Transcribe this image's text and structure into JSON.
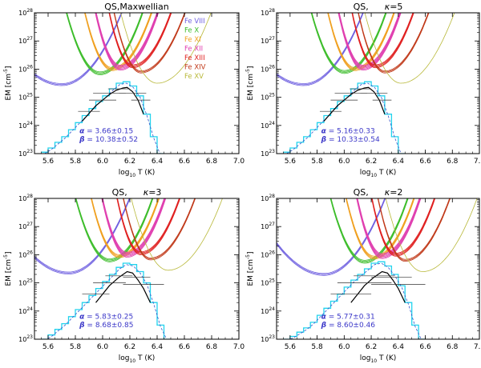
{
  "figure": {
    "xlabel_main": "log",
    "xlabel_sub": "10",
    "xlabel_tail": " T (K)",
    "ylabel_main": "EM [cm",
    "ylabel_sup": "-5",
    "ylabel_tail": "]"
  },
  "legend": [
    {
      "name": "Fe VIII",
      "color": "#6e5fe0"
    },
    {
      "name": "Fe X",
      "color": "#3dbd2b"
    },
    {
      "name": "Fe XI",
      "color": "#f0a020"
    },
    {
      "name": "Fe XII",
      "color": "#e040b0"
    },
    {
      "name": "Fe XIII",
      "color": "#e02020"
    },
    {
      "name": "Fe XIV",
      "color": "#c03818"
    },
    {
      "name": "Fe XV",
      "color": "#b8b838"
    }
  ],
  "chart_data": [
    {
      "type": "line",
      "title": "QS,    Maxwellian",
      "title_parts": {
        "prefix": "QS,",
        "kappa_symbol": "",
        "kappa_value": "Maxwellian"
      },
      "xlim": [
        5.5,
        7.0
      ],
      "ylim_log10": [
        23,
        28
      ],
      "x_ticks": [
        "5.6",
        "5.8",
        "6.0",
        "6.2",
        "6.4",
        "6.6",
        "6.8",
        "7.0"
      ],
      "y_ticks": [
        "10²³",
        "10²⁴",
        "10²⁵",
        "10²⁶",
        "10²⁷",
        "10²⁸"
      ],
      "show_legend": true,
      "loci": [
        {
          "ion": "Fe VIII",
          "Tmin": 5.7,
          "EMmin": 25.45,
          "left": 0.9,
          "right": 3.3,
          "n": 3
        },
        {
          "ion": "Fe X",
          "Tmin": 5.98,
          "EMmin": 25.85,
          "left": 3.6,
          "right": 5.5,
          "n": 4
        },
        {
          "ion": "Fe XI",
          "Tmin": 6.07,
          "EMmin": 26.0,
          "left": 5.0,
          "right": 6.0,
          "n": 4
        },
        {
          "ion": "Fe XII",
          "Tmin": 6.13,
          "EMmin": 26.05,
          "left": 6.0,
          "right": 6.5,
          "n": 6
        },
        {
          "ion": "Fe XIII",
          "Tmin": 6.22,
          "EMmin": 26.1,
          "left": 6.5,
          "right": 6.0,
          "n": 4
        },
        {
          "ion": "Fe XIV",
          "Tmin": 6.28,
          "EMmin": 25.9,
          "left": 5.5,
          "right": 5.0,
          "n": 3
        },
        {
          "ion": "Fe XV",
          "Tmin": 6.4,
          "EMmin": 25.5,
          "left": 3.5,
          "right": 4.0,
          "n": 1
        }
      ],
      "em_fit": {
        "T": [
          5.85,
          5.95,
          6.05,
          6.1,
          6.15,
          6.18,
          6.22,
          6.26,
          6.3
        ],
        "logEM": [
          24.15,
          24.7,
          25.1,
          25.25,
          25.33,
          25.35,
          25.2,
          24.9,
          24.4
        ]
      },
      "em_points": [
        {
          "T": 5.9,
          "logEM": 24.5,
          "dT": 0.08
        },
        {
          "T": 6.0,
          "logEM": 24.9,
          "dT": 0.1
        },
        {
          "T": 6.05,
          "logEM": 25.15,
          "dT": 0.12
        },
        {
          "T": 6.12,
          "logEM": 25.3,
          "dT": 0.08
        },
        {
          "T": 6.22,
          "logEM": 25.15,
          "dT": 0.1
        },
        {
          "T": 6.28,
          "logEM": 24.9,
          "dT": 0.07
        }
      ],
      "histogram": {
        "T_start": 5.55,
        "step": 0.05,
        "logEM": [
          23.05,
          23.2,
          23.4,
          23.6,
          23.85,
          24.1,
          24.35,
          24.6,
          24.85,
          25.05,
          25.3,
          25.5,
          25.55,
          25.4,
          25.05,
          24.4,
          23.6,
          23.0
        ]
      },
      "alpha_label": "α",
      "alpha": "3.66±0.15",
      "beta_label": "β",
      "beta": "10.38±0.52"
    },
    {
      "type": "line",
      "title": "QS,    κ=5",
      "title_parts": {
        "prefix": "QS,",
        "kappa_symbol": "κ",
        "kappa_value": "=5"
      },
      "xlim": [
        5.5,
        7.0
      ],
      "ylim_log10": [
        23,
        28
      ],
      "x_ticks": [
        "5.6",
        "5.8",
        "6.0",
        "6.2",
        "6.4",
        "6.6",
        "6.8",
        "7.0"
      ],
      "y_ticks": [
        "10²³",
        "10²⁴",
        "10²⁵",
        "10²⁶",
        "10²⁷",
        "10²⁸"
      ],
      "show_legend": false,
      "loci": [
        {
          "ion": "Fe VIII",
          "Tmin": 5.7,
          "EMmin": 25.45,
          "left": 0.9,
          "right": 3.3,
          "n": 3
        },
        {
          "ion": "Fe X",
          "Tmin": 6.0,
          "EMmin": 25.9,
          "left": 3.6,
          "right": 5.5,
          "n": 4
        },
        {
          "ion": "Fe XI",
          "Tmin": 6.08,
          "EMmin": 26.0,
          "left": 5.0,
          "right": 6.0,
          "n": 4
        },
        {
          "ion": "Fe XII",
          "Tmin": 6.14,
          "EMmin": 26.05,
          "left": 6.0,
          "right": 6.5,
          "n": 6
        },
        {
          "ion": "Fe XIII",
          "Tmin": 6.23,
          "EMmin": 26.1,
          "left": 6.5,
          "right": 6.0,
          "n": 4
        },
        {
          "ion": "Fe XIV",
          "Tmin": 6.3,
          "EMmin": 25.9,
          "left": 5.5,
          "right": 5.0,
          "n": 3
        },
        {
          "ion": "Fe XV",
          "Tmin": 6.42,
          "EMmin": 25.5,
          "left": 3.5,
          "right": 4.0,
          "n": 1
        }
      ],
      "em_fit": {
        "T": [
          5.85,
          5.95,
          6.05,
          6.1,
          6.15,
          6.18,
          6.22,
          6.26,
          6.3
        ],
        "logEM": [
          24.15,
          24.7,
          25.1,
          25.25,
          25.33,
          25.35,
          25.2,
          24.9,
          24.4
        ]
      },
      "em_points": [
        {
          "T": 5.9,
          "logEM": 24.5,
          "dT": 0.08
        },
        {
          "T": 6.0,
          "logEM": 24.9,
          "dT": 0.1
        },
        {
          "T": 6.05,
          "logEM": 25.15,
          "dT": 0.12
        },
        {
          "T": 6.12,
          "logEM": 25.3,
          "dT": 0.08
        },
        {
          "T": 6.22,
          "logEM": 25.15,
          "dT": 0.1
        },
        {
          "T": 6.28,
          "logEM": 24.9,
          "dT": 0.07
        }
      ],
      "histogram": {
        "T_start": 5.55,
        "step": 0.05,
        "logEM": [
          23.05,
          23.2,
          23.4,
          23.6,
          23.85,
          24.1,
          24.35,
          24.6,
          24.85,
          25.05,
          25.3,
          25.5,
          25.55,
          25.4,
          25.05,
          24.4,
          23.6,
          23.0
        ]
      },
      "alpha_label": "α",
      "alpha": "5.16±0.33",
      "beta_label": "β",
      "beta": "10.33±0.54"
    },
    {
      "type": "line",
      "title": "QS,    κ=3",
      "title_parts": {
        "prefix": "QS,",
        "kappa_symbol": "κ",
        "kappa_value": "=3"
      },
      "xlim": [
        5.5,
        7.0
      ],
      "ylim_log10": [
        23,
        28
      ],
      "x_ticks": [
        "5.6",
        "5.8",
        "6.0",
        "6.2",
        "6.4",
        "6.6",
        "6.8",
        "7.0"
      ],
      "y_ticks": [
        "10²³",
        "10²⁴",
        "10²⁵",
        "10²⁶",
        "10²⁷",
        "10²⁸"
      ],
      "show_legend": false,
      "loci": [
        {
          "ion": "Fe VIII",
          "Tmin": 5.75,
          "EMmin": 25.35,
          "left": 0.9,
          "right": 3.3,
          "n": 3
        },
        {
          "ion": "Fe X",
          "Tmin": 6.05,
          "EMmin": 25.8,
          "left": 3.6,
          "right": 5.5,
          "n": 4
        },
        {
          "ion": "Fe XI",
          "Tmin": 6.12,
          "EMmin": 25.95,
          "left": 5.0,
          "right": 6.0,
          "n": 4
        },
        {
          "ion": "Fe XII",
          "Tmin": 6.18,
          "EMmin": 26.0,
          "left": 6.0,
          "right": 6.5,
          "n": 6
        },
        {
          "ion": "Fe XIII",
          "Tmin": 6.28,
          "EMmin": 26.05,
          "left": 6.5,
          "right": 6.0,
          "n": 4
        },
        {
          "ion": "Fe XIV",
          "Tmin": 6.35,
          "EMmin": 25.85,
          "left": 5.5,
          "right": 5.0,
          "n": 3
        },
        {
          "ion": "Fe XV",
          "Tmin": 6.48,
          "EMmin": 25.45,
          "left": 3.5,
          "right": 4.0,
          "n": 1
        }
      ],
      "em_fit": {
        "T": [
          5.95,
          6.05,
          6.12,
          6.18,
          6.22,
          6.26,
          6.3,
          6.35
        ],
        "logEM": [
          24.3,
          24.9,
          25.2,
          25.4,
          25.35,
          25.1,
          24.8,
          24.3
        ]
      },
      "em_points": [
        {
          "T": 5.95,
          "logEM": 24.6,
          "dT": 0.1
        },
        {
          "T": 6.05,
          "logEM": 25.0,
          "dT": 0.12
        },
        {
          "T": 6.12,
          "logEM": 25.25,
          "dT": 0.1
        },
        {
          "T": 6.25,
          "logEM": 25.2,
          "dT": 0.1
        },
        {
          "T": 6.3,
          "logEM": 24.95,
          "dT": 0.15
        }
      ],
      "histogram": {
        "T_start": 5.55,
        "step": 0.05,
        "logEM": [
          23.0,
          23.15,
          23.35,
          23.55,
          23.8,
          24.05,
          24.3,
          24.55,
          24.8,
          25.05,
          25.3,
          25.55,
          25.7,
          25.65,
          25.4,
          25.0,
          24.3,
          23.5,
          23.0
        ]
      },
      "alpha_label": "α",
      "alpha": "5.83±0.25",
      "beta_label": "β",
      "beta": "8.68±0.85"
    },
    {
      "type": "line",
      "title": "QS,    κ=2",
      "title_parts": {
        "prefix": "QS,",
        "kappa_symbol": "κ",
        "kappa_value": "=2"
      },
      "xlim": [
        5.5,
        7.0
      ],
      "ylim_log10": [
        23,
        28
      ],
      "x_ticks": [
        "5.6",
        "5.8",
        "6.0",
        "6.2",
        "6.4",
        "6.6",
        "6.8",
        "7.0"
      ],
      "y_ticks": [
        "10²³",
        "10²⁴",
        "10²⁵",
        "10²⁶",
        "10²⁷",
        "10²⁸"
      ],
      "show_legend": false,
      "loci": [
        {
          "ion": "Fe VIII",
          "Tmin": 5.85,
          "EMmin": 25.3,
          "left": 0.9,
          "right": 3.3,
          "n": 3
        },
        {
          "ion": "Fe X",
          "Tmin": 6.15,
          "EMmin": 25.75,
          "left": 3.6,
          "right": 5.5,
          "n": 4
        },
        {
          "ion": "Fe XI",
          "Tmin": 6.22,
          "EMmin": 25.9,
          "left": 5.0,
          "right": 6.0,
          "n": 4
        },
        {
          "ion": "Fe XII",
          "Tmin": 6.28,
          "EMmin": 25.95,
          "left": 6.0,
          "right": 6.5,
          "n": 6
        },
        {
          "ion": "Fe XIII",
          "Tmin": 6.38,
          "EMmin": 26.0,
          "left": 6.5,
          "right": 6.0,
          "n": 4
        },
        {
          "ion": "Fe XIV",
          "Tmin": 6.45,
          "EMmin": 25.8,
          "left": 5.5,
          "right": 5.0,
          "n": 3
        },
        {
          "ion": "Fe XV",
          "Tmin": 6.58,
          "EMmin": 25.4,
          "left": 3.5,
          "right": 4.0,
          "n": 1
        }
      ],
      "em_fit": {
        "T": [
          6.05,
          6.15,
          6.22,
          6.28,
          6.32,
          6.36,
          6.4,
          6.45
        ],
        "logEM": [
          24.3,
          24.9,
          25.2,
          25.4,
          25.35,
          25.1,
          24.8,
          24.3
        ]
      },
      "em_points": [
        {
          "T": 6.05,
          "logEM": 24.6,
          "dT": 0.15
        },
        {
          "T": 6.15,
          "logEM": 25.0,
          "dT": 0.2
        },
        {
          "T": 6.22,
          "logEM": 25.25,
          "dT": 0.15
        },
        {
          "T": 6.35,
          "logEM": 25.2,
          "dT": 0.15
        },
        {
          "T": 6.4,
          "logEM": 24.95,
          "dT": 0.2
        }
      ],
      "histogram": {
        "T_start": 5.55,
        "step": 0.05,
        "logEM": [
          23.0,
          23.1,
          23.25,
          23.4,
          23.6,
          23.85,
          24.1,
          24.35,
          24.6,
          24.85,
          25.1,
          25.3,
          25.5,
          25.7,
          25.75,
          25.6,
          25.3,
          24.9,
          24.3,
          23.5,
          23.0
        ]
      },
      "alpha_label": "α",
      "alpha": "5.77±0.31",
      "beta_label": "β",
      "beta": "8.60±0.46"
    }
  ]
}
